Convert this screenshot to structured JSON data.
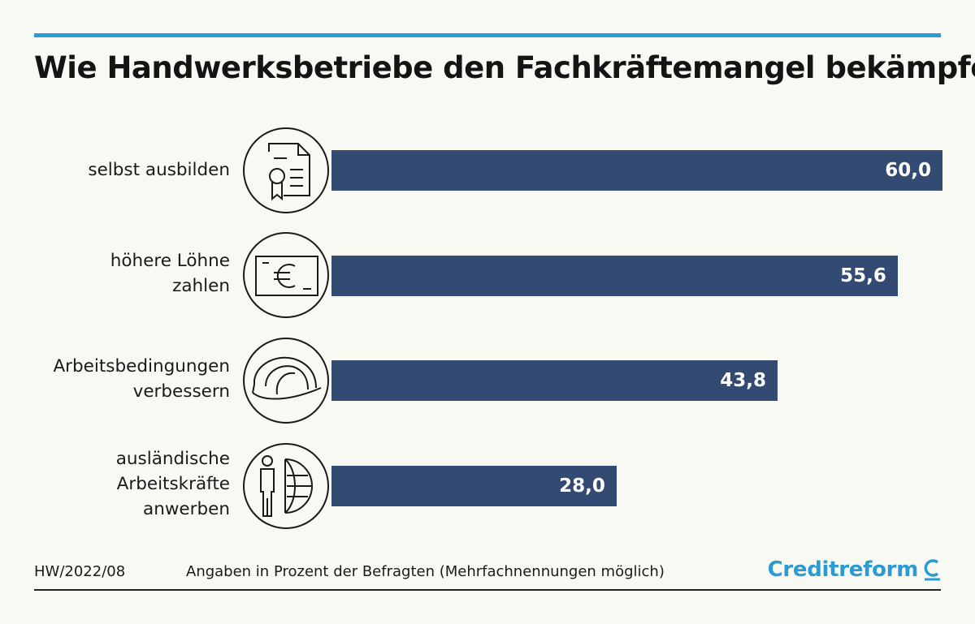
{
  "title": "Wie Handwerksbetriebe den Fachkräftemangel bekämpfen",
  "footer": {
    "code": "HW/2022/08",
    "note": "Angaben in Prozent der Befragten (Mehrfachnennungen möglich)",
    "brand": "Creditreform"
  },
  "colors": {
    "bar": "#334b73",
    "accent": "#2a9cd3",
    "background": "#f9f9f4"
  },
  "chart_data": {
    "type": "bar",
    "orientation": "horizontal",
    "title": "Wie Handwerksbetriebe den Fachkräftemangel bekämpfen",
    "xlabel": "",
    "ylabel": "",
    "xlim": [
      0,
      60
    ],
    "grid": false,
    "categories": [
      "selbst ausbilden",
      "höhere Löhne zahlen",
      "Arbeitsbedingungen verbessern",
      "ausländische Arbeitskräfte anwerben"
    ],
    "category_lines": [
      [
        "selbst ausbilden"
      ],
      [
        "höhere Löhne",
        "zahlen"
      ],
      [
        "Arbeitsbedingungen",
        "verbessern"
      ],
      [
        "ausländische",
        "Arbeitskräfte",
        "anwerben"
      ]
    ],
    "values": [
      60.0,
      55.6,
      43.8,
      28.0
    ],
    "value_labels": [
      "60,0",
      "55,6",
      "43,8",
      "28,0"
    ],
    "icons": [
      "certificate-icon",
      "euro-banknote-icon",
      "hard-hat-icon",
      "person-globe-icon"
    ]
  }
}
